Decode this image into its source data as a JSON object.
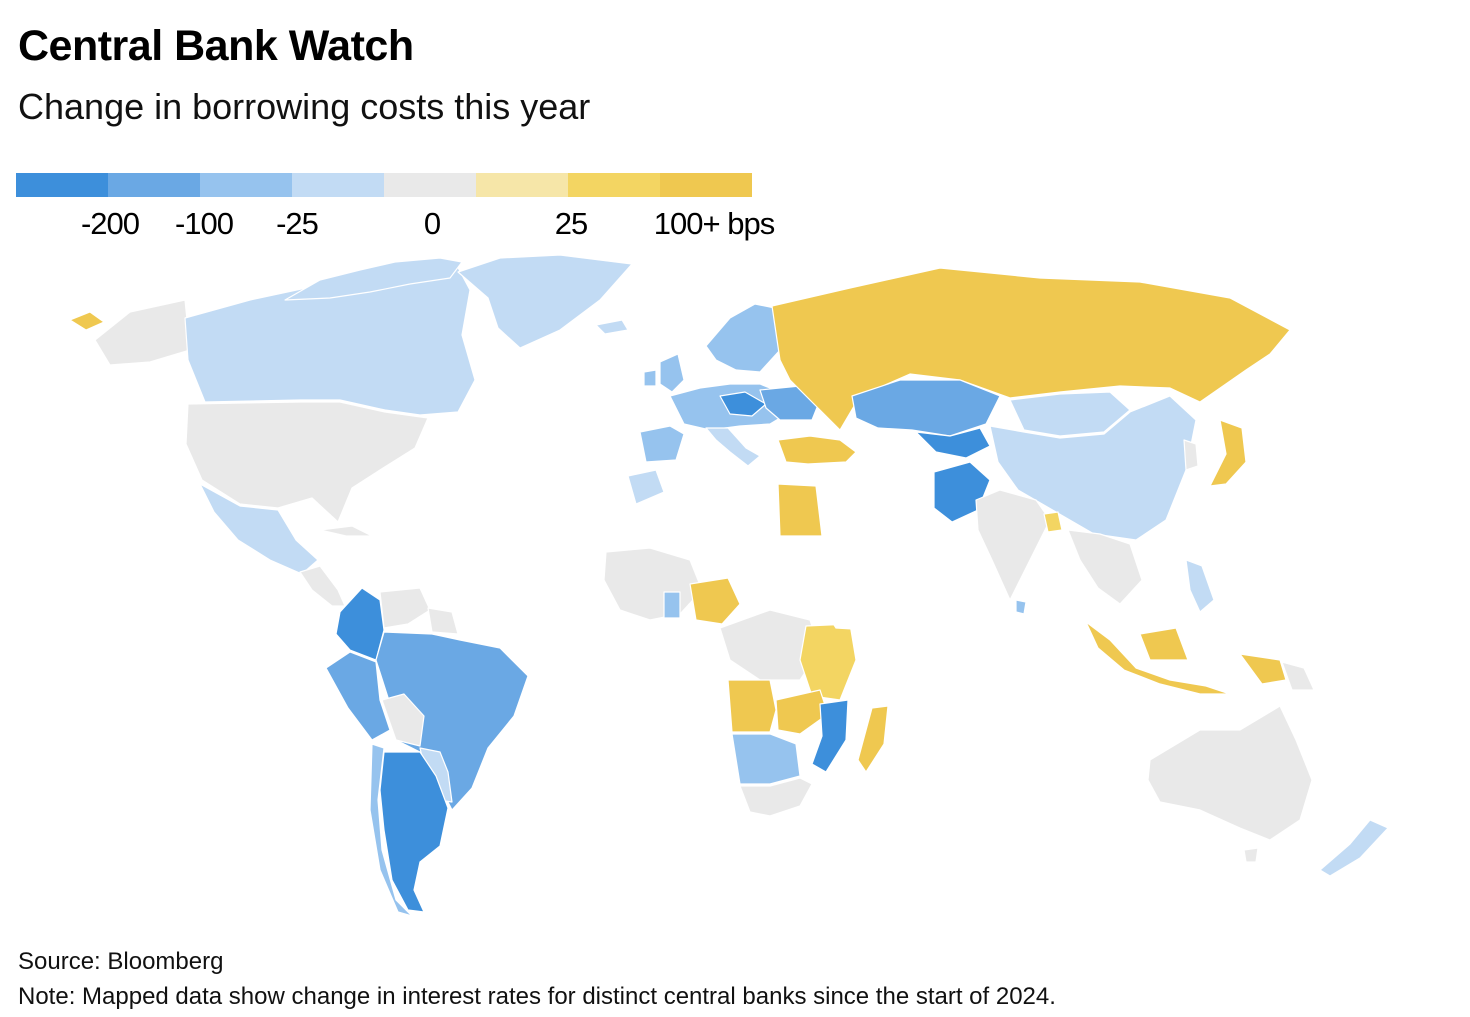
{
  "header": {
    "title": "Central Bank Watch",
    "subtitle": "Change in borrowing costs this year"
  },
  "legend": {
    "colors": [
      "#3d8fdb",
      "#6aa8e4",
      "#96c3ee",
      "#c2dbf4",
      "#e9e9e9",
      "#f6e6a8",
      "#f3d562",
      "#efc850"
    ],
    "labels": [
      "-200",
      "-100",
      "-25",
      "0",
      "25",
      "100+ bps"
    ]
  },
  "map": {
    "colors": {
      "no_data": "#ffffff",
      "no_change": "#e9e9e9",
      "cut_small": "#c2dbf4",
      "cut_25": "#96c3ee",
      "cut_100": "#6aa8e4",
      "cut_200": "#3d8fdb",
      "hike_small": "#f6e6a8",
      "hike_25": "#f3d562",
      "hike_100": "#efc850"
    }
  },
  "footer": {
    "source": "Source: Bloomberg",
    "note": "Note: Mapped data show change in interest rates for distinct central banks since the start of 2024."
  }
}
